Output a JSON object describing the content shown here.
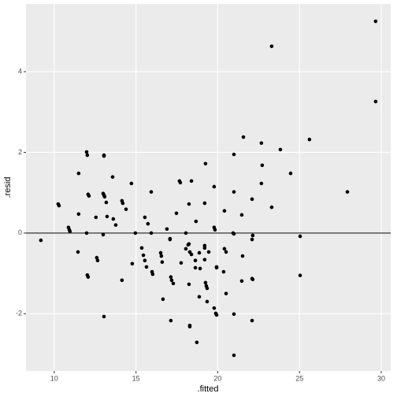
{
  "chart_data": {
    "type": "scatter",
    "x_label": ".fitted",
    "y_label": ".resid",
    "xlim": [
      8.27,
      30.58
    ],
    "ylim": [
      -3.42,
      5.68
    ],
    "xticks": [
      10,
      15,
      20,
      25,
      30
    ],
    "yticks": [
      -2,
      0,
      2,
      4
    ],
    "grid": true,
    "hline": 0,
    "color": "#000000",
    "x": [
      9.18,
      10.24,
      10.29,
      10.87,
      10.92,
      10.96,
      11.45,
      11.49,
      11.49,
      11.98,
      12.02,
      12.07,
      12.12,
      12.02,
      12.07,
      11.98,
      12.55,
      12.6,
      12.65,
      13.04,
      13.04,
      12.99,
      13.04,
      13.08,
      13.18,
      12.99,
      13.04,
      13.23,
      13.57,
      13.61,
      13.76,
      14.14,
      14.19,
      14.14,
      14.39,
      14.72,
      14.77,
      14.96,
      15.35,
      15.45,
      15.54,
      15.54,
      15.64,
      15.73,
      15.93,
      15.93,
      15.98,
      16.02,
      16.51,
      16.55,
      16.6,
      16.65,
      16.89,
      17.08,
      17.08,
      17.13,
      17.13,
      17.18,
      17.28,
      17.47,
      17.66,
      17.71,
      17.76,
      18.05,
      18.05,
      18.19,
      18.24,
      18.29,
      18.24,
      18.24,
      18.29,
      18.29,
      18.39,
      18.39,
      18.63,
      18.67,
      18.72,
      18.63,
      18.87,
      18.87,
      18.92,
      19.25,
      19.2,
      19.2,
      19.2,
      19.2,
      19.25,
      19.3,
      19.35,
      19.35,
      19.45,
      19.78,
      19.78,
      19.78,
      19.83,
      19.93,
      19.93,
      19.93,
      19.88,
      20.41,
      20.41,
      20.51,
      20.36,
      20.51,
      20.99,
      20.99,
      20.99,
      20.94,
      20.99,
      20.99,
      21.47,
      21.47,
      21.52,
      21.57,
      22.1,
      22.14,
      22.1,
      22.1,
      22.14,
      22.1,
      22.67,
      22.72,
      22.67,
      23.3,
      23.3,
      23.83,
      24.46,
      25.04,
      25.04,
      25.61,
      27.93,
      29.66,
      29.66
    ],
    "values": [
      -0.18,
      0.72,
      0.68,
      0.14,
      0.08,
      0.04,
      -0.47,
      0.47,
      1.48,
      2.01,
      1.93,
      0.96,
      0.92,
      -1.04,
      -1.09,
      0,
      0.39,
      -0.61,
      -0.68,
      1.93,
      1.91,
      0.98,
      0.94,
      0.9,
      0.76,
      -0.04,
      -2.07,
      0.41,
      1.39,
      0.35,
      0.2,
      0.8,
      0.74,
      -1.17,
      0.59,
      1.23,
      -0.76,
      0,
      -0.37,
      -0.55,
      -0.68,
      0.39,
      -0.84,
      0.23,
      1.02,
      0,
      -0.96,
      -1.02,
      -0.49,
      -0.57,
      -0.72,
      -1.64,
      0.1,
      -0.14,
      -0.16,
      -1.09,
      -2.17,
      -1.17,
      -1.25,
      0.49,
      1.29,
      1.25,
      -0.74,
      0,
      -0.39,
      -0.29,
      -0.27,
      -0.47,
      0.72,
      -1.27,
      -2.29,
      -2.32,
      1.29,
      -0.53,
      -0.68,
      0.29,
      -2.71,
      -0.86,
      -0.49,
      -1.58,
      -0.88,
      1.72,
      0.74,
      -0.31,
      -0.37,
      -0.66,
      -1.23,
      -1.31,
      -1.37,
      -1.7,
      -0.47,
      -1.86,
      1.15,
      0.14,
      0.08,
      -0.84,
      -0.86,
      -2.03,
      -1.99,
      0.55,
      -0.39,
      -0.47,
      -0.96,
      -1.5,
      1.95,
      -3.03,
      1.02,
      0,
      -0.02,
      -2.01,
      -1.19,
      0.45,
      -0.57,
      2.38,
      0.84,
      -0.06,
      -0.16,
      -1.13,
      -1.15,
      -2.17,
      2.23,
      1.68,
      1.23,
      0.64,
      4.63,
      2.07,
      1.48,
      -1.05,
      -0.08,
      2.32,
      1.02,
      5.25,
      3.26
    ]
  }
}
